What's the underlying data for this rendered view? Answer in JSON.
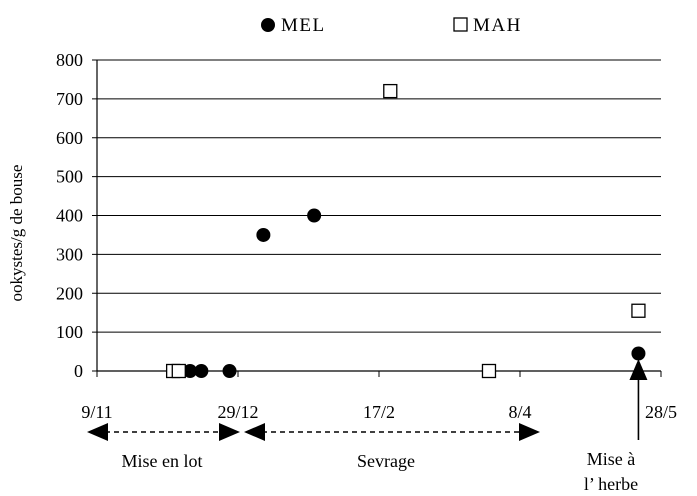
{
  "chart_data": {
    "type": "scatter",
    "ylabel": "ookystes/g de bouse",
    "ylim": [
      0,
      800
    ],
    "yticks": [
      "0",
      "100",
      "200",
      "300",
      "400",
      "500",
      "600",
      "700",
      "800"
    ],
    "xlim": [
      "9/11",
      "28/5"
    ],
    "xticks": [
      "9/11",
      "29/12",
      "17/2",
      "8/4",
      "28/5"
    ],
    "legend_position": "top",
    "grid": "horizontal",
    "series": [
      {
        "name": "MEL",
        "marker": "filled-circle",
        "points": [
          {
            "x": "12/12",
            "y": 0
          },
          {
            "x": "16/12",
            "y": 0
          },
          {
            "x": "26/12",
            "y": 0
          },
          {
            "x": "7/1",
            "y": 350
          },
          {
            "x": "25/1",
            "y": 400
          },
          {
            "x": "20/5",
            "y": 45
          }
        ]
      },
      {
        "name": "MAH",
        "marker": "open-square",
        "points": [
          {
            "x": "6/12",
            "y": 0
          },
          {
            "x": "8/12",
            "y": 0
          },
          {
            "x": "21/2",
            "y": 720
          },
          {
            "x": "28/3",
            "y": 0
          },
          {
            "x": "20/5",
            "y": 155
          }
        ]
      }
    ],
    "annotations": {
      "periods": [
        {
          "label": "Mise en lot",
          "from": "9/11",
          "to": "29/12",
          "style": "dashed double arrow"
        },
        {
          "label": "Sevrage",
          "from": "29/12",
          "to": "8/4",
          "style": "dashed double arrow"
        }
      ],
      "event": {
        "label_lines": [
          "Mise à",
          "l’ herbe"
        ],
        "x": "20/5",
        "style": "upward arrow"
      }
    }
  },
  "colors": {
    "ink": "#000000",
    "background": "#ffffff"
  }
}
